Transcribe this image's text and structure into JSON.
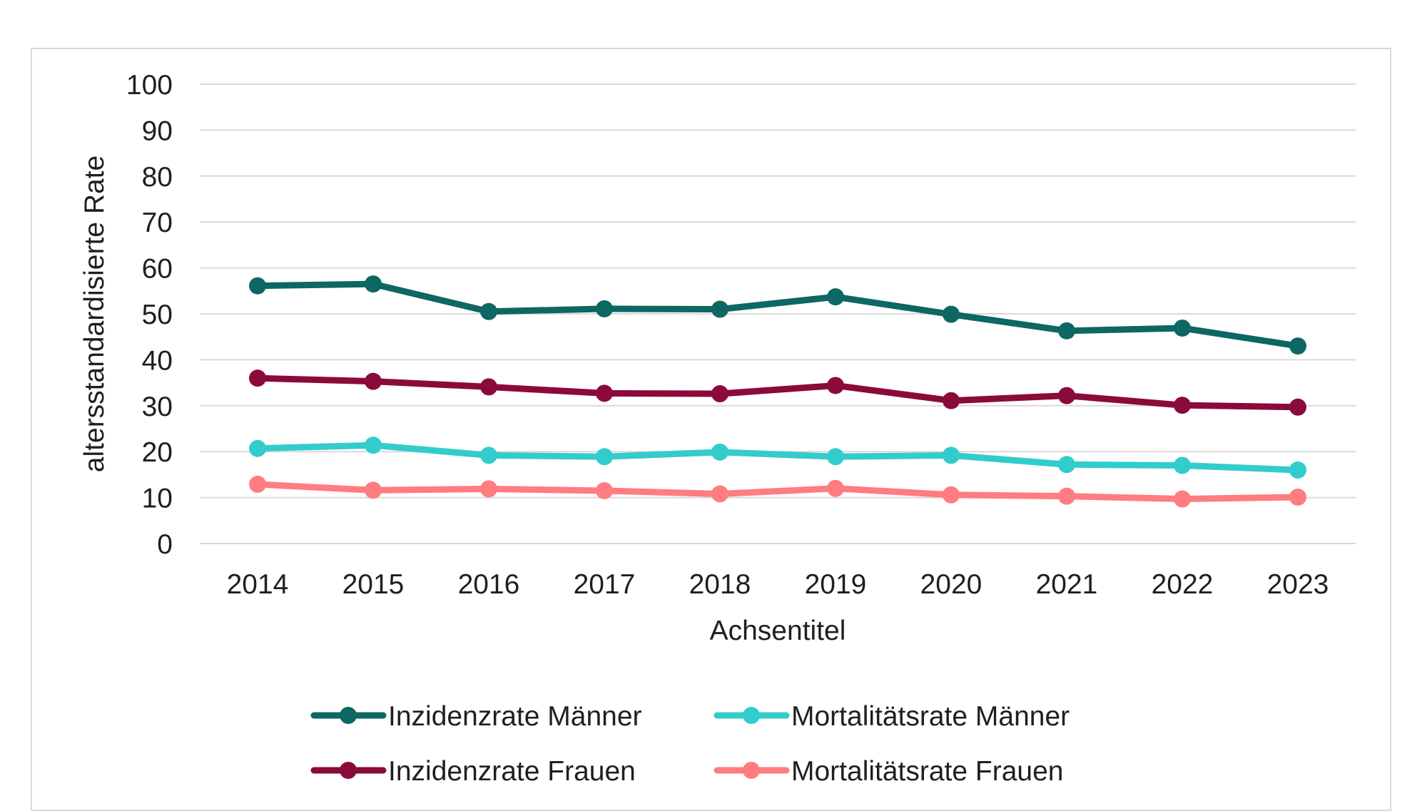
{
  "chart_data": {
    "type": "line",
    "title": "",
    "xlabel": "Achsentitel",
    "ylabel": "altersstandardisierte Rate",
    "ylim": [
      0,
      100
    ],
    "yticks": [
      0,
      10,
      20,
      30,
      40,
      50,
      60,
      70,
      80,
      90,
      100
    ],
    "categories": [
      "2014",
      "2015",
      "2016",
      "2017",
      "2018",
      "2019",
      "2020",
      "2021",
      "2022",
      "2023"
    ],
    "grid": "horizontal",
    "legend_position": "bottom",
    "series": [
      {
        "name": "Inzidenzrate Männer",
        "color": "#0d6763",
        "values": [
          56.1,
          56.5,
          50.5,
          51.1,
          51.0,
          53.7,
          49.9,
          46.3,
          46.9,
          43.0
        ]
      },
      {
        "name": "Mortalitätsrate Männer",
        "color": "#33cccc",
        "values": [
          20.7,
          21.4,
          19.2,
          18.9,
          19.9,
          18.9,
          19.2,
          17.2,
          17.0,
          16.0
        ]
      },
      {
        "name": "Inzidenzrate Frauen",
        "color": "#8b0a3c",
        "values": [
          36.0,
          35.3,
          34.1,
          32.7,
          32.6,
          34.4,
          31.1,
          32.2,
          30.1,
          29.7
        ]
      },
      {
        "name": "Mortalitätsrate Frauen",
        "color": "#ff7c80",
        "values": [
          12.9,
          11.6,
          11.9,
          11.5,
          10.8,
          12.0,
          10.6,
          10.3,
          9.7,
          10.1
        ]
      }
    ]
  }
}
